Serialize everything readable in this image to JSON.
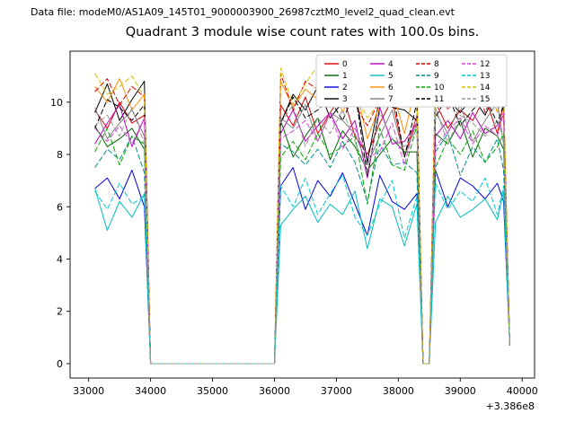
{
  "header": {
    "data_file_label": "Data file: modeM0/AS1A09_145T01_9000003900_26987cztM0_level2_quad_clean.evt"
  },
  "chart_data": {
    "type": "line",
    "title": "Quadrant 3 module wise count rates with 100.0s bins.",
    "xlabel": "",
    "ylabel": "",
    "x_offset_text": "+3.386e8",
    "xlim": [
      32700,
      40200
    ],
    "ylim": [
      -0.55,
      11.95
    ],
    "x_ticks": [
      33000,
      34000,
      35000,
      36000,
      37000,
      38000,
      39000,
      40000
    ],
    "y_ticks": [
      0,
      2,
      4,
      6,
      8,
      10
    ],
    "grid": false,
    "legend_position": "upper right",
    "legend_columns": 4,
    "x": [
      33100,
      33300,
      33500,
      33700,
      33900,
      34000,
      35000,
      36000,
      36100,
      36300,
      36500,
      36700,
      36900,
      37100,
      37300,
      37500,
      37700,
      37900,
      38100,
      38300,
      38400,
      38500,
      38600,
      38800,
      39000,
      39200,
      39400,
      39600,
      39700,
      39800
    ],
    "series": [
      {
        "name": "0",
        "color": "#dd0000",
        "style": "solid",
        "values": [
          9.7,
          9.0,
          10.0,
          9.2,
          9.5,
          0,
          0,
          0,
          9.9,
          9.1,
          10.2,
          8.8,
          9.6,
          10.3,
          8.7,
          8.0,
          9.2,
          10.1,
          7.9,
          9.5,
          0,
          0,
          10.0,
          9.0,
          9.7,
          9.3,
          10.2,
          8.8,
          9.9,
          0.7
        ]
      },
      {
        "name": "1",
        "color": "#006400",
        "style": "solid",
        "values": [
          9.1,
          8.3,
          8.6,
          9.0,
          8.2,
          0,
          0,
          0,
          9.3,
          7.9,
          8.7,
          9.4,
          7.8,
          8.9,
          8.3,
          7.4,
          8.0,
          8.6,
          8.1,
          8.1,
          0,
          0,
          8.8,
          8.4,
          9.3,
          7.9,
          9.0,
          8.7,
          8.2,
          0.7
        ]
      },
      {
        "name": "2",
        "color": "#0000dd",
        "style": "solid",
        "values": [
          6.7,
          7.1,
          6.3,
          7.4,
          6.0,
          0,
          0,
          0,
          6.8,
          7.5,
          5.9,
          7.0,
          6.4,
          7.3,
          6.1,
          4.9,
          7.2,
          6.2,
          5.9,
          6.5,
          0,
          0,
          7.4,
          6.0,
          7.1,
          6.8,
          6.3,
          6.9,
          6.2,
          0.7
        ]
      },
      {
        "name": "3",
        "color": "#000000",
        "style": "solid",
        "values": [
          9.6,
          10.7,
          9.3,
          10.1,
          10.8,
          0,
          0,
          0,
          9.2,
          10.3,
          9.7,
          10.6,
          9.4,
          10.0,
          10.5,
          7.7,
          10.2,
          9.8,
          9.7,
          9.3,
          0,
          0,
          10.4,
          10.1,
          9.6,
          10.2,
          9.5,
          10.5,
          9.7,
          0.7
        ]
      },
      {
        "name": "4",
        "color": "#bb00bb",
        "style": "solid",
        "values": [
          8.4,
          9.2,
          9.9,
          8.3,
          9.4,
          0,
          0,
          0,
          8.8,
          9.7,
          8.5,
          9.1,
          9.6,
          8.6,
          9.3,
          7.1,
          9.8,
          8.4,
          8.5,
          9.2,
          0,
          0,
          8.7,
          9.3,
          8.6,
          9.6,
          8.8,
          9.1,
          9.5,
          0.7
        ]
      },
      {
        "name": "5",
        "color": "#00bcbc",
        "style": "solid",
        "values": [
          6.7,
          5.1,
          6.2,
          5.6,
          6.5,
          0,
          0,
          0,
          5.3,
          5.9,
          6.4,
          5.4,
          6.1,
          5.7,
          6.6,
          4.4,
          6.3,
          6.0,
          4.5,
          6.1,
          0,
          0,
          5.4,
          6.4,
          5.6,
          5.9,
          6.3,
          5.5,
          6.6,
          0.7
        ]
      },
      {
        "name": "6",
        "color": "#ff8c00",
        "style": "solid",
        "values": [
          10.6,
          10.0,
          10.9,
          9.7,
          10.3,
          0,
          0,
          0,
          10.8,
          9.8,
          10.5,
          10.1,
          11.0,
          9.6,
          10.7,
          8.6,
          9.9,
          10.5,
          8.8,
          10.8,
          0,
          0,
          10.0,
          10.3,
          10.7,
          9.9,
          11.0,
          9.6,
          10.4,
          0.7
        ]
      },
      {
        "name": "7",
        "color": "#808080",
        "style": "solid",
        "values": [
          9.8,
          8.6,
          9.2,
          9.7,
          8.7,
          0,
          0,
          0,
          9.4,
          9.0,
          9.9,
          8.5,
          9.6,
          9.3,
          8.8,
          7.6,
          8.7,
          9.7,
          7.9,
          9.2,
          0,
          0,
          9.6,
          8.8,
          9.9,
          8.5,
          9.3,
          10.0,
          8.4,
          0.7
        ]
      },
      {
        "name": "8",
        "color": "#dd0000",
        "style": "dashed",
        "values": [
          10.4,
          10.9,
          9.9,
          10.6,
          10.2,
          0,
          0,
          0,
          11.1,
          9.7,
          10.8,
          10.5,
          10.0,
          10.6,
          9.9,
          9.1,
          10.1,
          10.4,
          9.8,
          10.0,
          0,
          0,
          11.1,
          9.7,
          10.5,
          11.2,
          9.6,
          10.7,
          10.1,
          0.7
        ]
      },
      {
        "name": "9",
        "color": "#008b8b",
        "style": "dashed",
        "values": [
          7.5,
          8.2,
          7.8,
          8.7,
          7.3,
          0,
          0,
          0,
          8.4,
          8.1,
          7.6,
          8.2,
          7.5,
          8.5,
          7.7,
          6.2,
          8.4,
          7.6,
          7.7,
          7.3,
          0,
          0,
          8.1,
          8.8,
          7.2,
          8.3,
          7.7,
          8.6,
          7.4,
          0.7
        ]
      },
      {
        "name": "10",
        "color": "#00aa00",
        "style": "dashed",
        "values": [
          8.1,
          9.0,
          7.6,
          8.7,
          8.4,
          0,
          0,
          0,
          7.9,
          8.5,
          7.8,
          8.8,
          8.0,
          8.3,
          8.7,
          6.1,
          9.0,
          7.6,
          7.4,
          9.1,
          0,
          0,
          7.5,
          8.6,
          8.0,
          8.9,
          7.7,
          8.3,
          8.8,
          0.7
        ]
      },
      {
        "name": "11",
        "color": "#000000",
        "style": "dashed",
        "values": [
          9.0,
          10.1,
          9.8,
          9.3,
          9.9,
          0,
          0,
          0,
          9.2,
          10.2,
          9.4,
          9.7,
          10.1,
          9.3,
          10.4,
          7.2,
          9.8,
          10.5,
          7.9,
          10.0,
          0,
          0,
          9.4,
          10.3,
          9.1,
          9.7,
          10.2,
          9.2,
          9.9,
          0.7
        ]
      },
      {
        "name": "12",
        "color": "#dd44dd",
        "style": "dashed",
        "values": [
          9.0,
          8.5,
          9.1,
          8.4,
          9.4,
          0,
          0,
          0,
          8.6,
          8.9,
          9.3,
          8.5,
          9.6,
          8.2,
          9.0,
          7.9,
          8.1,
          9.2,
          7.6,
          9.5,
          0,
          0,
          8.3,
          8.9,
          9.4,
          8.4,
          9.1,
          8.7,
          9.6,
          0.7
        ]
      },
      {
        "name": "13",
        "color": "#00cccc",
        "style": "dashed",
        "values": [
          6.6,
          5.9,
          6.9,
          6.1,
          6.4,
          0,
          0,
          0,
          6.8,
          6.0,
          7.1,
          5.7,
          6.5,
          7.2,
          5.6,
          4.9,
          6.1,
          7.0,
          4.8,
          6.4,
          0,
          0,
          6.9,
          5.9,
          6.6,
          6.2,
          7.1,
          5.7,
          6.8,
          0.7
        ]
      },
      {
        "name": "14",
        "color": "#d4c200",
        "style": "dashed",
        "values": [
          11.1,
          10.3,
          10.6,
          11.0,
          10.2,
          0,
          0,
          0,
          11.3,
          9.9,
          10.7,
          11.4,
          9.8,
          10.9,
          10.3,
          9.4,
          10.0,
          10.6,
          10.1,
          10.1,
          0,
          0,
          10.8,
          10.4,
          11.3,
          9.9,
          11.0,
          10.7,
          10.2,
          0.7
        ]
      },
      {
        "name": "15",
        "color": "#999999",
        "style": "dashed",
        "values": [
          9.1,
          9.5,
          8.7,
          9.8,
          8.4,
          0,
          0,
          0,
          9.2,
          9.9,
          8.3,
          9.4,
          8.8,
          9.7,
          8.5,
          7.3,
          9.6,
          8.6,
          8.3,
          8.9,
          0,
          0,
          9.8,
          8.4,
          9.5,
          9.2,
          8.7,
          9.3,
          8.6,
          0.7
        ]
      }
    ]
  }
}
